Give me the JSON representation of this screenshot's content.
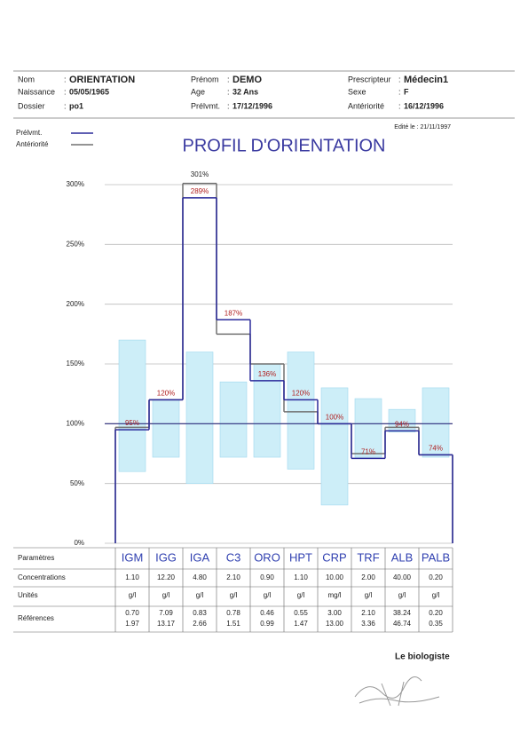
{
  "header": {
    "fields": [
      {
        "label": "Nom",
        "value": "ORIENTATION"
      },
      {
        "label": "Prénom",
        "value": "DEMO"
      },
      {
        "label": "Prescripteur",
        "value": "Médecin1"
      },
      {
        "label": "Naissance",
        "value": "05/05/1965"
      },
      {
        "label": "Age",
        "value": "32 Ans"
      },
      {
        "label": "Sexe",
        "value": "F"
      },
      {
        "label": "Dossier",
        "value": "po1"
      },
      {
        "label": "Prélvmt.",
        "value": "17/12/1996"
      },
      {
        "label": "Antériorité",
        "value": "16/12/1996"
      }
    ],
    "edited": "Edité le : 21/11/1997"
  },
  "chart_data": {
    "type": "step",
    "title": "PROFIL D'ORIENTATION",
    "categories": [
      "IGM",
      "IGG",
      "IGA",
      "C3",
      "ORO",
      "HPT",
      "CRP",
      "TRF",
      "ALB",
      "PALB"
    ],
    "series": [
      {
        "name": "Prélvmt.",
        "color": "#2a2a9a",
        "values": [
          95,
          120,
          289,
          187,
          136,
          120,
          100,
          71,
          94,
          74
        ],
        "value_labels": [
          "95%",
          "120%",
          "289%",
          "187%",
          "136%",
          "120%",
          "100%",
          "71%",
          "94%",
          "74%"
        ]
      },
      {
        "name": "Antériorité",
        "color": "#707070",
        "values": [
          97,
          120,
          301,
          175,
          150,
          110,
          100,
          75,
          97,
          74
        ],
        "value_labels": [
          null,
          null,
          "301%",
          null,
          null,
          null,
          null,
          null,
          null,
          null
        ]
      }
    ],
    "ranges": [
      [
        60,
        170
      ],
      [
        72,
        120
      ],
      [
        50,
        160
      ],
      [
        72,
        135
      ],
      [
        72,
        150
      ],
      [
        62,
        160
      ],
      [
        32,
        130
      ],
      [
        72,
        121
      ],
      [
        93,
        112
      ],
      [
        72,
        130
      ]
    ],
    "range_color": "#cdeef8",
    "reference_line": 100,
    "ylim": [
      0,
      300
    ],
    "yticks": [
      {
        "value": 0,
        "label": "0%"
      },
      {
        "value": 50,
        "label": "50%"
      },
      {
        "value": 100,
        "label": "100%"
      },
      {
        "value": 150,
        "label": "150%"
      },
      {
        "value": 200,
        "label": "200%"
      },
      {
        "value": 250,
        "label": "250%"
      },
      {
        "value": 300,
        "label": "300%"
      }
    ],
    "grid": true
  },
  "table": {
    "row_labels": [
      "Paramètres",
      "Concentrations",
      "Unités",
      "Références"
    ],
    "concentrations": [
      "1.10",
      "12.20",
      "4.80",
      "2.10",
      "0.90",
      "1.10",
      "10.00",
      "2.00",
      "40.00",
      "0.20"
    ],
    "units": [
      "g/l",
      "g/l",
      "g/l",
      "g/l",
      "g/l",
      "g/l",
      "mg/l",
      "g/l",
      "g/l",
      "g/l"
    ],
    "references": [
      [
        "0.70",
        "1.97"
      ],
      [
        "7.09",
        "13.17"
      ],
      [
        "0.83",
        "2.66"
      ],
      [
        "0.78",
        "1.51"
      ],
      [
        "0.46",
        "0.99"
      ],
      [
        "0.55",
        "1.47"
      ],
      [
        "3.00",
        "13.00"
      ],
      [
        "2.10",
        "3.36"
      ],
      [
        "38.24",
        "46.74"
      ],
      [
        "0.20",
        "0.35"
      ]
    ]
  },
  "footer": {
    "signature_label": "Le biologiste"
  }
}
